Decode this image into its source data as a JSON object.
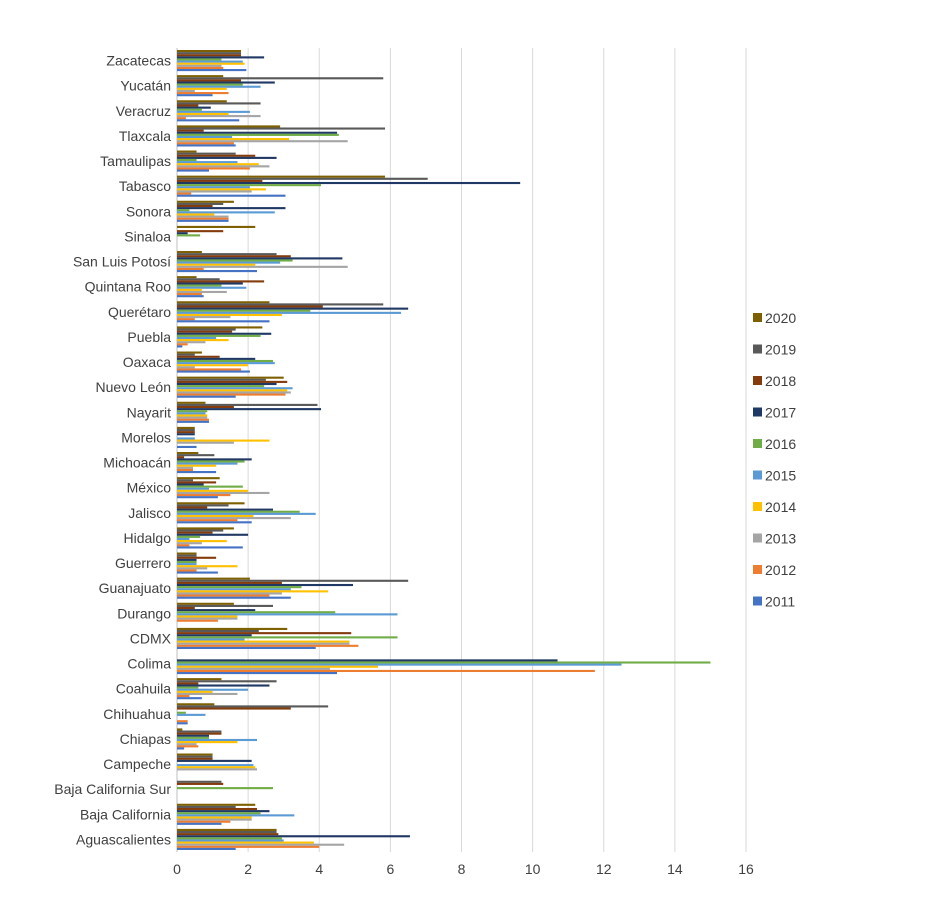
{
  "chart_data": {
    "type": "bar",
    "orientation": "horizontal",
    "title": "",
    "xlabel": "",
    "ylabel": "",
    "xlim": [
      0,
      16
    ],
    "xticks": [
      "0",
      "2",
      "4",
      "6",
      "8",
      "10",
      "12",
      "14",
      "16"
    ],
    "grid": true,
    "legend_position": "right",
    "categories": [
      "Zacatecas",
      "Yucatán",
      "Veracruz",
      "Tlaxcala",
      "Tamaulipas",
      "Tabasco",
      "Sonora",
      "Sinaloa",
      "San Luis Potosí",
      "Quintana Roo",
      "Querétaro",
      "Puebla",
      "Oaxaca",
      "Nuevo León",
      "Nayarit",
      "Morelos",
      "Michoacán",
      "México",
      "Jalisco",
      "Hidalgo",
      "Guerrero",
      "Guanajuato",
      "Durango",
      "CDMX",
      "Colima",
      "Coahuila",
      "Chihuahua",
      "Chiapas",
      "Campeche",
      "Baja California Sur",
      "Baja California",
      "Aguascalientes"
    ],
    "series": [
      {
        "name": "2020",
        "color": "#7f6000",
        "values": [
          1.8,
          1.3,
          1.4,
          2.9,
          0.55,
          5.85,
          1.6,
          2.2,
          0.7,
          0.55,
          2.6,
          2.4,
          0.7,
          3.0,
          0.8,
          0.5,
          0.6,
          1.2,
          1.9,
          1.6,
          0.55,
          2.05,
          1.6,
          3.1,
          0,
          1.25,
          1.05,
          0.15,
          1.0,
          0,
          2.2,
          2.8
        ]
      },
      {
        "name": "2019",
        "color": "#595959",
        "values": [
          1.8,
          5.8,
          2.35,
          5.85,
          1.65,
          7.05,
          1.3,
          0,
          2.8,
          1.2,
          5.8,
          1.65,
          0.5,
          2.5,
          3.95,
          0.5,
          1.05,
          0.45,
          1.45,
          1.3,
          0.55,
          6.5,
          2.7,
          2.3,
          0,
          2.8,
          4.25,
          1.25,
          1.0,
          1.25,
          1.65,
          2.8
        ]
      },
      {
        "name": "2018",
        "color": "#843c0c",
        "values": [
          1.8,
          1.8,
          0.6,
          0.75,
          2.2,
          2.4,
          1.0,
          1.3,
          3.2,
          2.45,
          4.1,
          1.55,
          1.2,
          3.1,
          1.6,
          0.5,
          0.2,
          1.1,
          0.85,
          1.0,
          1.1,
          2.95,
          0.5,
          4.9,
          0,
          0.6,
          3.2,
          1.25,
          1.0,
          1.3,
          2.25,
          2.85
        ]
      },
      {
        "name": "2017",
        "color": "#203864",
        "values": [
          2.45,
          2.75,
          0.95,
          4.5,
          2.8,
          9.65,
          3.05,
          0.3,
          4.65,
          1.85,
          6.5,
          2.65,
          2.2,
          2.8,
          4.05,
          0.5,
          2.1,
          0.75,
          2.7,
          2.0,
          0.55,
          4.95,
          2.2,
          2.1,
          10.7,
          2.6,
          0,
          0.9,
          2.1,
          0,
          2.6,
          6.55
        ]
      },
      {
        "name": "2016",
        "color": "#70ad47",
        "values": [
          1.25,
          1.85,
          0.7,
          4.55,
          0.55,
          4.05,
          0.35,
          0.65,
          3.25,
          1.25,
          3.75,
          2.35,
          2.7,
          2.45,
          0.85,
          0,
          1.9,
          1.85,
          3.45,
          0.65,
          0.55,
          3.5,
          4.45,
          6.2,
          15.0,
          0.6,
          0.25,
          0.9,
          0,
          2.7,
          2.35,
          2.95
        ]
      },
      {
        "name": "2015",
        "color": "#5b9bd5",
        "values": [
          1.85,
          2.35,
          2.05,
          1.55,
          1.7,
          2.05,
          2.75,
          0,
          2.9,
          1.95,
          6.3,
          1.1,
          2.75,
          3.25,
          0.8,
          0.5,
          1.7,
          0.9,
          3.9,
          0.35,
          0.55,
          3.2,
          6.2,
          1.9,
          12.5,
          2.0,
          0.8,
          2.25,
          2.15,
          0,
          3.3,
          3.0
        ]
      },
      {
        "name": "2014",
        "color": "#ffc000",
        "values": [
          1.9,
          1.4,
          1.45,
          3.15,
          2.3,
          2.5,
          1.05,
          0,
          2.2,
          0.7,
          2.95,
          1.45,
          2.0,
          3.1,
          0.85,
          2.6,
          1.1,
          2.0,
          2.15,
          1.4,
          1.7,
          4.25,
          1.7,
          4.85,
          5.65,
          1.0,
          0,
          1.7,
          2.2,
          0,
          2.1,
          3.85
        ]
      },
      {
        "name": "2013",
        "color": "#a5a5a5",
        "values": [
          1.25,
          0.5,
          2.35,
          4.8,
          2.6,
          2.1,
          1.45,
          0,
          4.8,
          1.4,
          1.5,
          0.8,
          0.5,
          3.2,
          0.85,
          1.6,
          0.45,
          2.6,
          3.2,
          0.7,
          0.85,
          2.95,
          1.7,
          4.85,
          4.3,
          1.7,
          0,
          0.55,
          2.25,
          0,
          2.1,
          4.7
        ]
      },
      {
        "name": "2012",
        "color": "#ed7d31",
        "values": [
          1.3,
          1.45,
          0.25,
          1.6,
          2.05,
          0.4,
          1.45,
          0,
          0.75,
          0.7,
          0.5,
          0.3,
          1.8,
          3.05,
          0.9,
          0,
          0.45,
          1.5,
          1.7,
          0.35,
          0.55,
          2.6,
          1.15,
          5.1,
          11.75,
          0.35,
          0.3,
          0.6,
          0,
          0,
          1.5,
          4.0
        ]
      },
      {
        "name": "2011",
        "color": "#4472c4",
        "values": [
          1.95,
          1.0,
          1.75,
          1.65,
          0.9,
          3.05,
          1.45,
          0,
          2.25,
          0.75,
          2.6,
          0.15,
          2.05,
          1.65,
          0.9,
          0.55,
          1.1,
          1.15,
          2.1,
          1.85,
          1.15,
          3.2,
          0,
          3.9,
          4.5,
          0.7,
          0.3,
          0.2,
          0,
          0,
          1.25,
          1.65
        ]
      }
    ]
  }
}
